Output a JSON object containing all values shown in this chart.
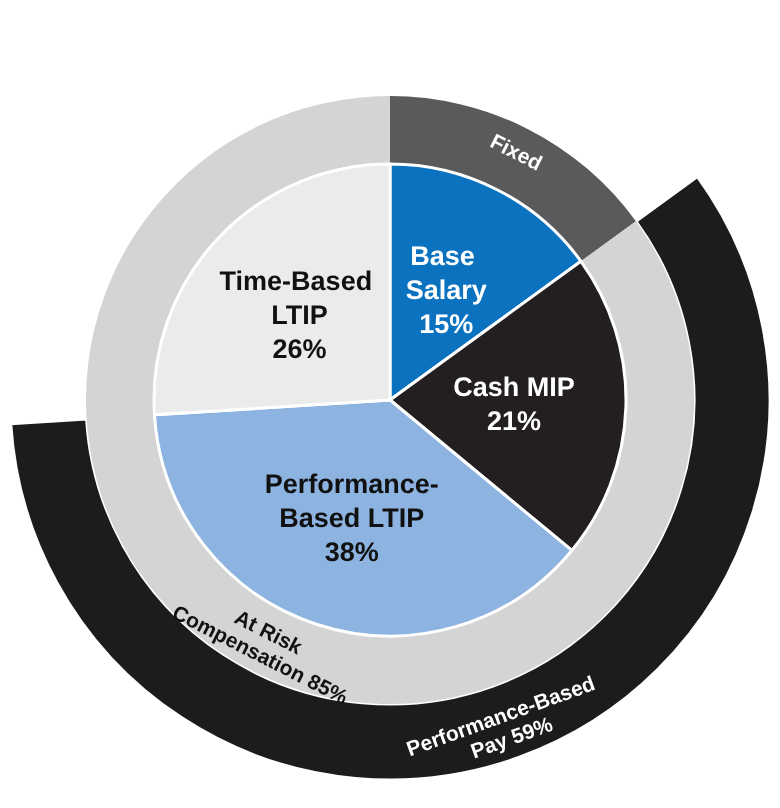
{
  "chart_data": [
    {
      "type": "pie",
      "categories": [
        "Performance-Based Pay"
      ],
      "values": [
        59
      ],
      "value_labels": [
        "59%"
      ],
      "colors": [
        "#1d1b1c"
      ]
    },
    {
      "type": "donut",
      "categories": [
        "Fixed",
        "At Risk Compensation"
      ],
      "values": [
        15,
        85
      ],
      "value_labels": [
        null,
        "85%"
      ],
      "colors": [
        "#5a5a5c",
        "#d4d4d4"
      ]
    },
    {
      "type": "pie",
      "categories": [
        "Base Salary",
        "Cash MIP",
        "Performance-Based LTIP",
        "Time-Based LTIP"
      ],
      "values": [
        15,
        21,
        38,
        26
      ],
      "value_labels": [
        "15%",
        "21%",
        "38%",
        "26%"
      ],
      "colors": [
        "#0b72c0",
        "#231f20",
        "#8db3e0",
        "#ebebeb"
      ]
    }
  ]
}
